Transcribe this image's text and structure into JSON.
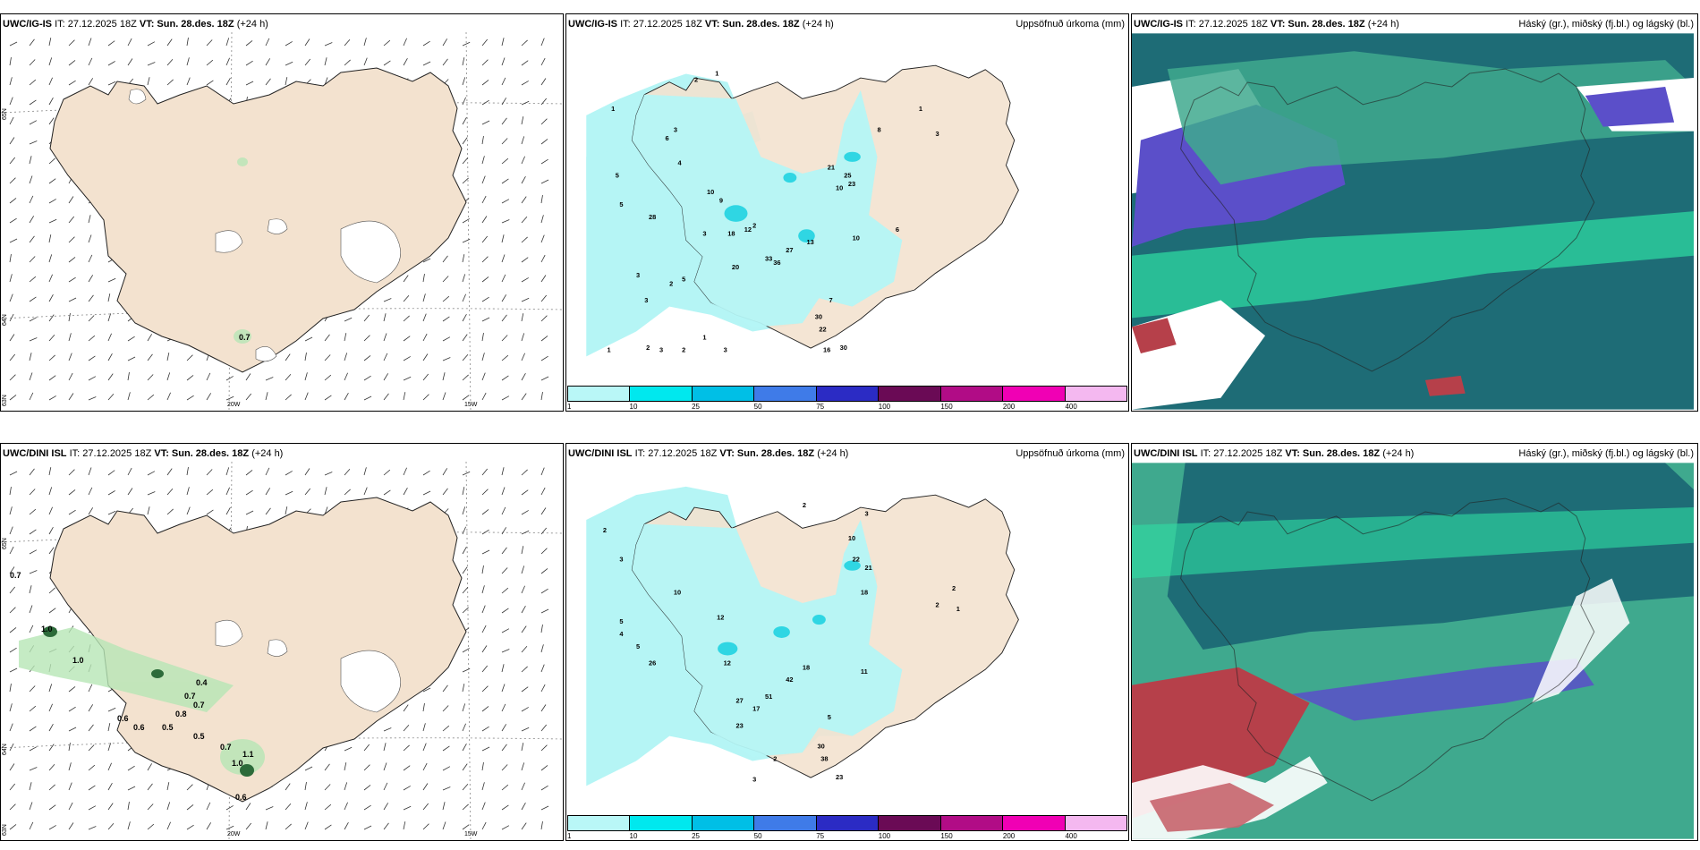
{
  "panels": [
    {
      "model": "UWC/IG-IS",
      "it": "IT: 27.12.2025 18Z",
      "vt_label": "VT:",
      "vt": "Sun. 28.des. 18Z",
      "lead": "(+24 h)",
      "right": ""
    },
    {
      "model": "UWC/IG-IS",
      "it": "IT: 27.12.2025 18Z",
      "vt_label": "VT:",
      "vt": "Sun. 28.des. 18Z",
      "lead": "(+24 h)",
      "right": "Uppsöfnuð úrkoma (mm)"
    },
    {
      "model": "UWC/IG-IS",
      "it": "IT: 27.12.2025 18Z",
      "vt_label": "VT:",
      "vt": "Sun. 28.des. 18Z",
      "lead": "(+24 h)",
      "right": "Háský (gr.), miðský (fj.bl.) og lágský (bl.)"
    },
    {
      "model": "UWC/DINI ISL",
      "it": "IT: 27.12.2025 18Z",
      "vt_label": "VT:",
      "vt": "Sun. 28.des. 18Z",
      "lead": "(+24 h)",
      "right": ""
    },
    {
      "model": "UWC/DINI ISL",
      "it": "IT: 27.12.2025 18Z",
      "vt_label": "VT:",
      "vt": "Sun. 28.des. 18Z",
      "lead": "(+24 h)",
      "right": "Uppsöfnuð úrkoma (mm)"
    },
    {
      "model": "UWC/DINI ISL",
      "it": "IT: 27.12.2025 18Z",
      "vt_label": "VT:",
      "vt": "Sun. 28.des. 18Z",
      "lead": "(+24 h)",
      "right": "Háský (gr.), miðský (fj.bl.) og lágský (bl.)"
    }
  ],
  "axis_labels": {
    "lon_20w": "20W",
    "lon_15w": "15W",
    "lat_65n": "65N",
    "lat_64n": "64N",
    "lat_63n": "63N"
  },
  "scale": {
    "ticks": [
      "1",
      "10",
      "25",
      "50",
      "75",
      "100",
      "150",
      "200",
      "400"
    ],
    "colors": [
      "#b9f7f7",
      "#00e8ee",
      "#00bfe6",
      "#3f7be8",
      "#2b2bc4",
      "#6a0a55",
      "#b10c86",
      "#f000b4",
      "#f4b8f0"
    ]
  },
  "colors": {
    "land": "#f3e2cf",
    "precip": "#b5f5f5",
    "precip_dark": "#2fd6e3",
    "wind_green": "#b6e6b5",
    "cloud_dark": "#1e6c76",
    "cloud_teal": "#3fa98e",
    "cloud_green": "#2ee0a4",
    "cloud_blue": "#5b4fc9",
    "cloud_red": "#b6404a"
  },
  "precip_top": [
    {
      "v": "2"
    },
    {
      "v": "1"
    },
    {
      "v": "1"
    },
    {
      "v": "3"
    },
    {
      "v": "5"
    },
    {
      "v": "6"
    },
    {
      "v": "4"
    },
    {
      "v": "10"
    },
    {
      "v": "9"
    },
    {
      "v": "28"
    },
    {
      "v": "5"
    },
    {
      "v": "2"
    },
    {
      "v": "3"
    },
    {
      "v": "3"
    },
    {
      "v": "2"
    },
    {
      "v": "3"
    },
    {
      "v": "5"
    },
    {
      "v": "18"
    },
    {
      "v": "12"
    },
    {
      "v": "20"
    },
    {
      "v": "33"
    },
    {
      "v": "27"
    },
    {
      "v": "36"
    },
    {
      "v": "13"
    },
    {
      "v": "21"
    },
    {
      "v": "25"
    },
    {
      "v": "23"
    },
    {
      "v": "10"
    },
    {
      "v": "10"
    },
    {
      "v": "30"
    },
    {
      "v": "22"
    },
    {
      "v": "16"
    },
    {
      "v": "30"
    },
    {
      "v": "1"
    },
    {
      "v": "2"
    },
    {
      "v": "3"
    },
    {
      "v": "2"
    },
    {
      "v": "1"
    },
    {
      "v": "3"
    },
    {
      "v": "1"
    },
    {
      "v": "3"
    },
    {
      "v": "8"
    },
    {
      "v": "6"
    },
    {
      "v": "7"
    }
  ],
  "precip_bottom": [
    {
      "v": "2"
    },
    {
      "v": "3"
    },
    {
      "v": "5"
    },
    {
      "v": "4"
    },
    {
      "v": "5"
    },
    {
      "v": "10"
    },
    {
      "v": "12"
    },
    {
      "v": "26"
    },
    {
      "v": "12"
    },
    {
      "v": "51"
    },
    {
      "v": "27"
    },
    {
      "v": "17"
    },
    {
      "v": "23"
    },
    {
      "v": "18"
    },
    {
      "v": "42"
    },
    {
      "v": "22"
    },
    {
      "v": "21"
    },
    {
      "v": "18"
    },
    {
      "v": "10"
    },
    {
      "v": "11"
    },
    {
      "v": "30"
    },
    {
      "v": "38"
    },
    {
      "v": "23"
    },
    {
      "v": "2"
    },
    {
      "v": "3"
    },
    {
      "v": "5"
    },
    {
      "v": "2"
    },
    {
      "v": "1"
    },
    {
      "v": "2"
    },
    {
      "v": "3"
    },
    {
      "v": "2"
    }
  ],
  "wind_labels_top": [
    {
      "v": "0.7"
    }
  ],
  "wind_labels_bottom": [
    {
      "v": "0.7"
    },
    {
      "v": "1.0"
    },
    {
      "v": "1.0"
    },
    {
      "v": "0.6"
    },
    {
      "v": "0.6"
    },
    {
      "v": "0.5"
    },
    {
      "v": "0.8"
    },
    {
      "v": "0.7"
    },
    {
      "v": "0.7"
    },
    {
      "v": "0.4"
    },
    {
      "v": "0.5"
    },
    {
      "v": "0.7"
    },
    {
      "v": "1.0"
    },
    {
      "v": "1.1"
    },
    {
      "v": "0.6"
    }
  ]
}
